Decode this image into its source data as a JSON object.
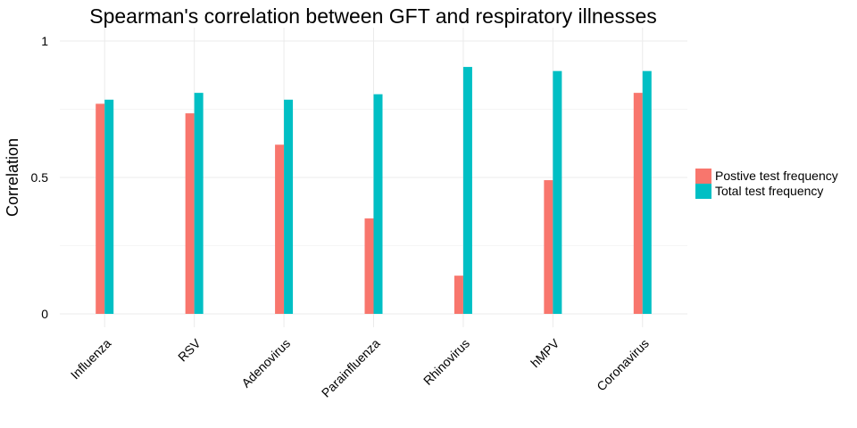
{
  "chart_data": {
    "type": "bar",
    "title": "Spearman's correlation between GFT and respiratory illnesses",
    "xlabel": "",
    "ylabel": "Correlation",
    "categories": [
      "Influenza",
      "RSV",
      "Adenovirus",
      "Parainfluenza",
      "Rhinovirus",
      "hMPV",
      "Coronavirus"
    ],
    "series": [
      {
        "name": "Postive test frequency",
        "color": "#F8766D",
        "values": [
          0.77,
          0.735,
          0.62,
          0.35,
          0.14,
          0.49,
          0.81
        ]
      },
      {
        "name": "Total test frequency",
        "color": "#00BFC4",
        "values": [
          0.785,
          0.81,
          0.785,
          0.805,
          0.905,
          0.89,
          0.89
        ]
      }
    ],
    "ylim": [
      0,
      1
    ],
    "yticks": [
      0,
      0.5,
      1
    ],
    "ytick_labels": [
      "0",
      "0.5",
      "1"
    ],
    "grid": true,
    "legend_position": "right"
  }
}
